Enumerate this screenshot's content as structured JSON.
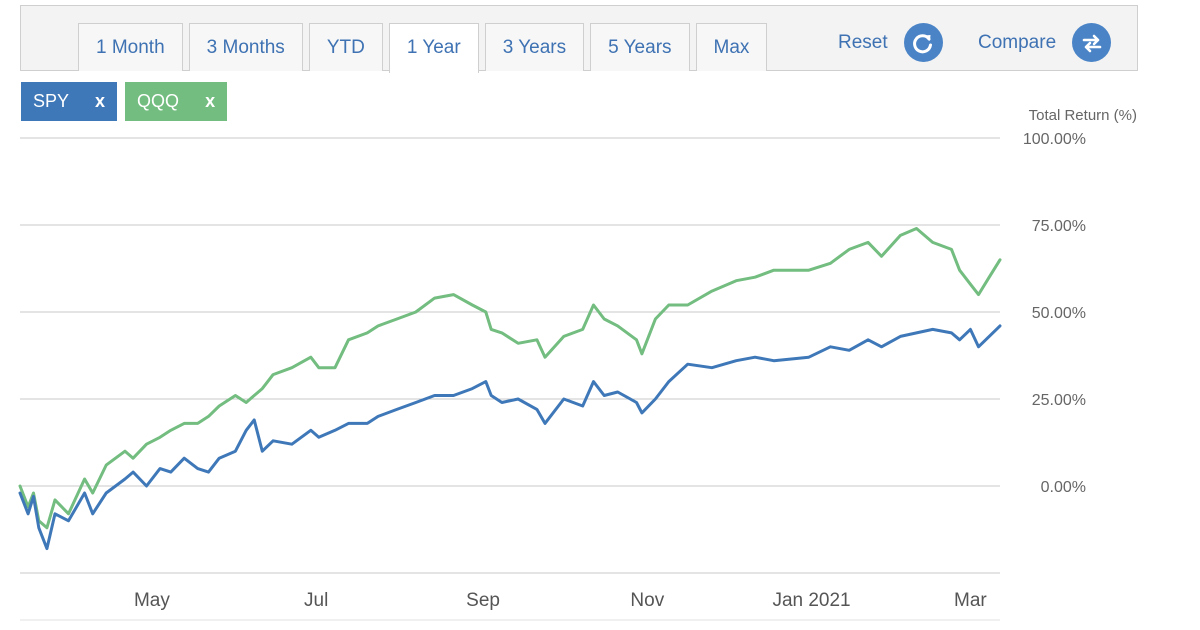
{
  "toolbar": {
    "tabs": [
      {
        "label": "1 Month",
        "name": "tab-1-month"
      },
      {
        "label": "3 Months",
        "name": "tab-3-months"
      },
      {
        "label": "YTD",
        "name": "tab-ytd"
      },
      {
        "label": "1 Year",
        "name": "tab-1-year",
        "active": true
      },
      {
        "label": "3 Years",
        "name": "tab-3-years"
      },
      {
        "label": "5 Years",
        "name": "tab-5-years"
      },
      {
        "label": "Max",
        "name": "tab-max"
      }
    ],
    "reset_label": "Reset",
    "reset_icon": "refresh-icon",
    "compare_label": "Compare",
    "compare_icon": "swap-arrows-icon"
  },
  "chips": [
    {
      "label": "SPY",
      "close": "x",
      "color": "#3f78b8"
    },
    {
      "label": "QQQ",
      "close": "x",
      "color": "#72bd7f"
    }
  ],
  "chart_data": {
    "type": "line",
    "ylabel": "Total Return (%)",
    "ylim": [
      -25,
      100
    ],
    "yticks": [
      0,
      25,
      50,
      75,
      100
    ],
    "ytick_labels": [
      "0.00%",
      "25.00%",
      "50.00%",
      "75.00%",
      "100.00%"
    ],
    "xlim": [
      "2020-03-13",
      "2021-03-12"
    ],
    "xticks": [
      "2020-05-01",
      "2020-07-01",
      "2020-09-01",
      "2020-11-01",
      "2021-01-01",
      "2021-03-01"
    ],
    "xtick_labels": [
      "May",
      "Jul",
      "Sep",
      "Nov",
      "Jan 2021",
      "Mar"
    ],
    "grid": true,
    "series": [
      {
        "name": "SPY",
        "color": "#3f78b8",
        "x": [
          "2020-03-13",
          "2020-03-16",
          "2020-03-18",
          "2020-03-20",
          "2020-03-23",
          "2020-03-26",
          "2020-03-31",
          "2020-04-06",
          "2020-04-09",
          "2020-04-14",
          "2020-04-21",
          "2020-04-24",
          "2020-04-29",
          "2020-05-04",
          "2020-05-08",
          "2020-05-13",
          "2020-05-18",
          "2020-05-22",
          "2020-05-26",
          "2020-06-01",
          "2020-06-05",
          "2020-06-08",
          "2020-06-11",
          "2020-06-15",
          "2020-06-22",
          "2020-06-29",
          "2020-07-02",
          "2020-07-08",
          "2020-07-13",
          "2020-07-20",
          "2020-07-24",
          "2020-07-31",
          "2020-08-07",
          "2020-08-14",
          "2020-08-21",
          "2020-08-28",
          "2020-09-02",
          "2020-09-04",
          "2020-09-08",
          "2020-09-14",
          "2020-09-21",
          "2020-09-24",
          "2020-10-01",
          "2020-10-08",
          "2020-10-12",
          "2020-10-16",
          "2020-10-21",
          "2020-10-28",
          "2020-10-30",
          "2020-11-04",
          "2020-11-09",
          "2020-11-16",
          "2020-11-25",
          "2020-12-04",
          "2020-12-11",
          "2020-12-18",
          "2020-12-31",
          "2021-01-08",
          "2021-01-15",
          "2021-01-22",
          "2021-01-27",
          "2021-02-03",
          "2021-02-09",
          "2021-02-15",
          "2021-02-22",
          "2021-02-25",
          "2021-03-01",
          "2021-03-04",
          "2021-03-08",
          "2021-03-12"
        ],
        "y": [
          -2,
          -8,
          -3,
          -12,
          -18,
          -8,
          -10,
          -2,
          -8,
          -2,
          2,
          4,
          0,
          5,
          4,
          8,
          5,
          4,
          8,
          10,
          16,
          19,
          10,
          13,
          12,
          16,
          14,
          16,
          18,
          18,
          20,
          22,
          24,
          26,
          26,
          28,
          30,
          26,
          24,
          25,
          22,
          18,
          25,
          23,
          30,
          26,
          27,
          24,
          21,
          25,
          30,
          35,
          34,
          36,
          37,
          36,
          37,
          40,
          39,
          42,
          40,
          43,
          44,
          45,
          44,
          42,
          45,
          40,
          43,
          46
        ]
      },
      {
        "name": "QQQ",
        "color": "#72bd7f",
        "x": [
          "2020-03-13",
          "2020-03-16",
          "2020-03-18",
          "2020-03-20",
          "2020-03-23",
          "2020-03-26",
          "2020-03-31",
          "2020-04-06",
          "2020-04-09",
          "2020-04-14",
          "2020-04-21",
          "2020-04-24",
          "2020-04-29",
          "2020-05-04",
          "2020-05-08",
          "2020-05-13",
          "2020-05-18",
          "2020-05-22",
          "2020-05-26",
          "2020-06-01",
          "2020-06-05",
          "2020-06-08",
          "2020-06-11",
          "2020-06-15",
          "2020-06-22",
          "2020-06-29",
          "2020-07-02",
          "2020-07-08",
          "2020-07-13",
          "2020-07-20",
          "2020-07-24",
          "2020-07-31",
          "2020-08-07",
          "2020-08-14",
          "2020-08-21",
          "2020-08-28",
          "2020-09-02",
          "2020-09-04",
          "2020-09-08",
          "2020-09-14",
          "2020-09-21",
          "2020-09-24",
          "2020-10-01",
          "2020-10-08",
          "2020-10-12",
          "2020-10-16",
          "2020-10-21",
          "2020-10-28",
          "2020-10-30",
          "2020-11-04",
          "2020-11-09",
          "2020-11-16",
          "2020-11-25",
          "2020-12-04",
          "2020-12-11",
          "2020-12-18",
          "2020-12-31",
          "2021-01-08",
          "2021-01-15",
          "2021-01-22",
          "2021-01-27",
          "2021-02-03",
          "2021-02-09",
          "2021-02-15",
          "2021-02-22",
          "2021-02-25",
          "2021-03-01",
          "2021-03-04",
          "2021-03-08",
          "2021-03-12"
        ],
        "y": [
          0,
          -6,
          -2,
          -10,
          -12,
          -4,
          -8,
          2,
          -2,
          6,
          10,
          8,
          12,
          14,
          16,
          18,
          18,
          20,
          23,
          26,
          24,
          26,
          28,
          32,
          34,
          37,
          34,
          34,
          42,
          44,
          46,
          48,
          50,
          54,
          55,
          52,
          50,
          45,
          44,
          41,
          42,
          37,
          43,
          45,
          52,
          48,
          46,
          42,
          38,
          48,
          52,
          52,
          56,
          59,
          60,
          62,
          62,
          64,
          68,
          70,
          66,
          72,
          74,
          70,
          68,
          62,
          58,
          55,
          60,
          65
        ]
      }
    ]
  }
}
